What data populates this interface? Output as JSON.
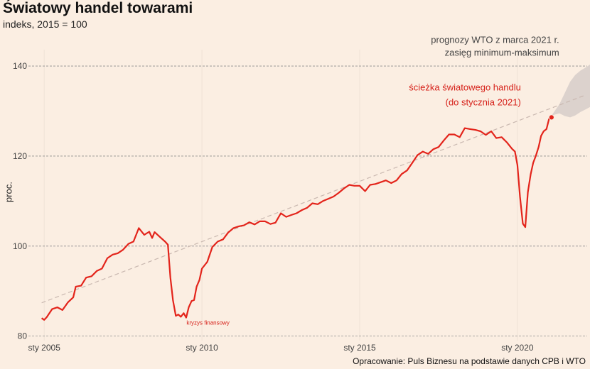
{
  "title": "Światowy handel towarami",
  "subtitle": "indeks, 2015 = 100",
  "source": "Opracowanie: Puls Biznesu na podstawie danych CPB i WTO",
  "colors": {
    "background": "#fbeee2",
    "series": "#e3241b",
    "trend": "#c9b8b0",
    "band": "#dcd2cd",
    "grid": "#8f8f8f",
    "annotation_red": "#d6211a",
    "annotation_gray": "#444444"
  },
  "chart_data": {
    "type": "line",
    "xlabel": "",
    "ylabel": "proc.",
    "xlim": [
      2004.5,
      2022.3
    ],
    "ylim": [
      79,
      146
    ],
    "yticks": [
      80,
      100,
      120,
      140
    ],
    "xticks": [
      {
        "value": 2005,
        "label": "sty 2005"
      },
      {
        "value": 2010,
        "label": "sty 2010"
      },
      {
        "value": 2015,
        "label": "sty 2015"
      },
      {
        "value": 2020,
        "label": "sty 2020"
      }
    ],
    "grid": "horizontal dashed",
    "series": [
      {
        "kind": "actual",
        "x": [
          2004.92,
          2005.0,
          2005.08,
          2005.25,
          2005.42,
          2005.58,
          2005.75,
          2005.92,
          2006.0,
          2006.17,
          2006.33,
          2006.5,
          2006.67,
          2006.83,
          2007.0,
          2007.17,
          2007.33,
          2007.5,
          2007.67,
          2007.83,
          2008.0,
          2008.17,
          2008.33,
          2008.42,
          2008.5,
          2008.67,
          2008.83,
          2008.92,
          2009.0,
          2009.08,
          2009.17,
          2009.25,
          2009.33,
          2009.42,
          2009.5,
          2009.58,
          2009.67,
          2009.75,
          2009.83,
          2009.92,
          2010.0,
          2010.17,
          2010.33,
          2010.5,
          2010.67,
          2010.83,
          2011.0,
          2011.17,
          2011.33,
          2011.5,
          2011.67,
          2011.83,
          2012.0,
          2012.17,
          2012.33,
          2012.5,
          2012.67,
          2012.83,
          2013.0,
          2013.17,
          2013.33,
          2013.5,
          2013.67,
          2013.83,
          2014.0,
          2014.17,
          2014.33,
          2014.5,
          2014.67,
          2014.83,
          2015.0,
          2015.17,
          2015.33,
          2015.5,
          2015.67,
          2015.83,
          2016.0,
          2016.17,
          2016.33,
          2016.5,
          2016.67,
          2016.83,
          2017.0,
          2017.17,
          2017.33,
          2017.5,
          2017.67,
          2017.83,
          2018.0,
          2018.17,
          2018.33,
          2018.5,
          2018.67,
          2018.83,
          2019.0,
          2019.17,
          2019.33,
          2019.5,
          2019.67,
          2019.83,
          2019.92,
          2020.0,
          2020.08,
          2020.17,
          2020.25,
          2020.33,
          2020.42,
          2020.5,
          2020.58,
          2020.67,
          2020.75,
          2020.83,
          2020.92,
          2021.0,
          2021.08
        ],
        "y": [
          84.0,
          83.6,
          84.2,
          86.0,
          86.4,
          85.8,
          87.5,
          88.6,
          91.0,
          91.2,
          93.0,
          93.3,
          94.5,
          95.0,
          97.3,
          98.1,
          98.4,
          99.2,
          100.5,
          101.0,
          104.0,
          102.5,
          103.2,
          101.8,
          103.1,
          102.0,
          101.0,
          100.3,
          93.0,
          88.0,
          84.5,
          84.8,
          84.3,
          85.1,
          84.1,
          86.4,
          87.8,
          88.0,
          91.0,
          92.5,
          95.0,
          96.5,
          99.8,
          101.0,
          101.5,
          103.0,
          104.0,
          104.4,
          104.6,
          105.3,
          104.8,
          105.5,
          105.5,
          104.9,
          105.2,
          107.3,
          106.5,
          106.9,
          107.3,
          108.0,
          108.5,
          109.5,
          109.3,
          110.0,
          110.5,
          111.0,
          111.8,
          112.8,
          113.6,
          113.4,
          113.4,
          112.2,
          113.6,
          113.8,
          114.2,
          114.6,
          114.0,
          114.6,
          116.0,
          116.8,
          118.5,
          120.2,
          121.0,
          120.5,
          121.5,
          122.0,
          123.5,
          124.8,
          124.8,
          124.2,
          126.2,
          126.0,
          125.8,
          125.5,
          124.7,
          125.5,
          124.0,
          124.2,
          123.0,
          121.6,
          121.0,
          118.0,
          111.0,
          105.0,
          104.2,
          112.0,
          116.0,
          118.5,
          120.0,
          122.0,
          124.5,
          125.5,
          126.0,
          128.2,
          128.6
        ]
      },
      {
        "kind": "trend",
        "x": [
          2004.92,
          2022.1
        ],
        "y": [
          87.4,
          133.4
        ]
      }
    ],
    "forecast_band": {
      "x": [
        2021.08,
        2021.33,
        2021.5,
        2021.67,
        2021.83,
        2022.0,
        2022.17,
        2022.33,
        2022.5,
        2022.67,
        2022.83,
        2023.0
      ],
      "upper": [
        129.0,
        131.5,
        134.0,
        136.5,
        138.0,
        139.0,
        139.7,
        140.5,
        141.2,
        141.6,
        141.9,
        142.1
      ],
      "lower": [
        129.0,
        129.5,
        128.9,
        128.6,
        129.0,
        129.8,
        130.4,
        131.0,
        131.8,
        132.5,
        133.5,
        134.5
      ]
    },
    "annotations": [
      {
        "label": "kryzys finansowy",
        "x": 2009.42,
        "y": 83.2
      },
      {
        "label_lines": [
          "ścieżka światowego handlu",
          "(do stycznia 2021)"
        ],
        "x": 2021.08,
        "y": 128.6
      },
      {
        "label_lines": [
          "prognozy WTO z marca 2021 r.",
          "zasięg minimum-maksimum"
        ],
        "x": 2022.0,
        "y": 141.5
      }
    ]
  }
}
